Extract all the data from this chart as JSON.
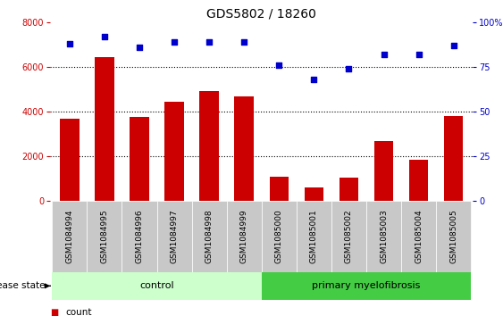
{
  "title": "GDS5802 / 18260",
  "samples": [
    "GSM1084994",
    "GSM1084995",
    "GSM1084996",
    "GSM1084997",
    "GSM1084998",
    "GSM1084999",
    "GSM1085000",
    "GSM1085001",
    "GSM1085002",
    "GSM1085003",
    "GSM1085004",
    "GSM1085005"
  ],
  "counts": [
    3700,
    6450,
    3750,
    4450,
    4950,
    4700,
    1100,
    620,
    1050,
    2700,
    1850,
    3800
  ],
  "percentiles": [
    88,
    92,
    86,
    89,
    89,
    89,
    76,
    68,
    74,
    82,
    82,
    87
  ],
  "groups": [
    "control",
    "control",
    "control",
    "control",
    "control",
    "control",
    "primary myelofibrosis",
    "primary myelofibrosis",
    "primary myelofibrosis",
    "primary myelofibrosis",
    "primary myelofibrosis",
    "primary myelofibrosis"
  ],
  "bar_color": "#cc0000",
  "dot_color": "#0000cc",
  "control_color": "#ccffcc",
  "myelofibrosis_color": "#44cc44",
  "ylim_left": [
    0,
    8000
  ],
  "ylim_right": [
    0,
    100
  ],
  "yticks_left": [
    0,
    2000,
    4000,
    6000,
    8000
  ],
  "yticks_right": [
    0,
    25,
    50,
    75,
    100
  ],
  "grid_yticks": [
    2000,
    4000,
    6000
  ],
  "tick_area_color": "#c8c8c8",
  "title_fontsize": 10,
  "label_fontsize": 8,
  "tick_fontsize": 7,
  "sample_label_fontsize": 6.5
}
